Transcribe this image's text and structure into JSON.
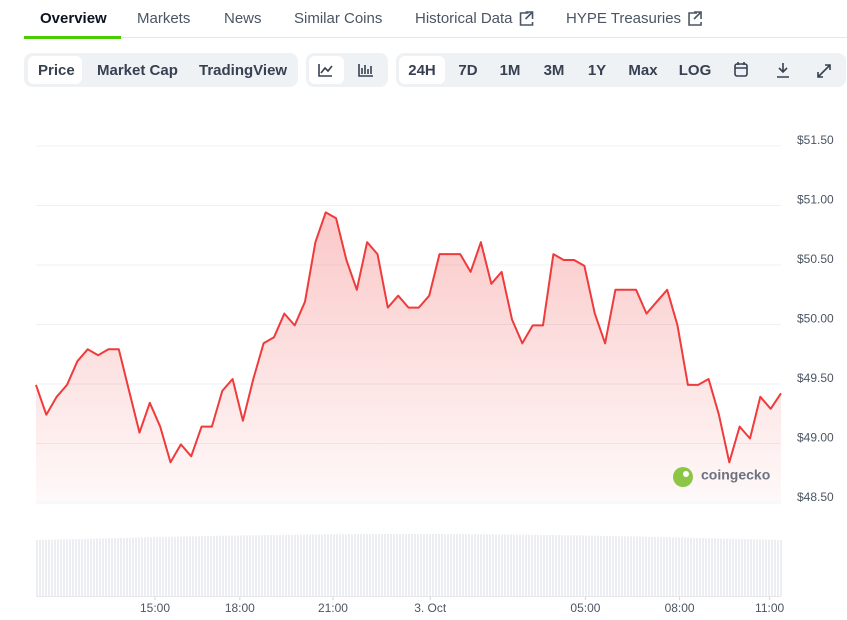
{
  "tabs": [
    "Overview",
    "Markets",
    "News",
    "Similar Coins",
    "Historical Data",
    "HYPE Treasuries"
  ],
  "toolbar": {
    "views": [
      "Price",
      "Market Cap",
      "TradingView"
    ],
    "ranges": [
      "24H",
      "7D",
      "1M",
      "3M",
      "1Y",
      "Max",
      "LOG"
    ]
  },
  "watermark": "coingecko",
  "chart_data": {
    "type": "line",
    "color": "#ef3b3b",
    "values": [
      49.45,
      49.2,
      49.35,
      49.45,
      49.65,
      49.75,
      49.7,
      49.75,
      49.75,
      49.4,
      49.05,
      49.3,
      49.1,
      48.8,
      48.95,
      48.85,
      49.1,
      49.1,
      49.4,
      49.5,
      49.15,
      49.5,
      49.8,
      49.85,
      50.05,
      49.95,
      50.15,
      50.65,
      50.9,
      50.85,
      50.5,
      50.25,
      50.65,
      50.55,
      50.1,
      50.2,
      50.1,
      50.1,
      50.2,
      50.55,
      50.55,
      50.55,
      50.4,
      50.65,
      50.3,
      50.4,
      50.0,
      49.8,
      49.95,
      49.95,
      50.55,
      50.5,
      50.5,
      50.45,
      50.05,
      49.8,
      50.25,
      50.25,
      50.25,
      50.05,
      50.15,
      50.25,
      49.95,
      49.45,
      49.45,
      49.5,
      49.2,
      48.8,
      49.1,
      49.0,
      49.35,
      49.25,
      49.38
    ],
    "xticks": [
      {
        "value": 11.5,
        "label": "15:00"
      },
      {
        "value": 19.7,
        "label": "18:00"
      },
      {
        "value": 28.7,
        "label": "21:00"
      },
      {
        "value": 38.1,
        "label": "3. Oct"
      },
      {
        "value": 53.1,
        "label": "05:00"
      },
      {
        "value": 62.2,
        "label": "08:00"
      },
      {
        "value": 70.9,
        "label": "11:00"
      }
    ],
    "ylim": [
      48.5,
      51.5
    ],
    "yticks": [
      {
        "value": 48.5,
        "label": "$48.50"
      },
      {
        "value": 49,
        "label": "$49.00"
      },
      {
        "value": 49.5,
        "label": "$49.50"
      },
      {
        "value": 50,
        "label": "$50.00"
      },
      {
        "value": 50.5,
        "label": "$50.50"
      },
      {
        "value": 51,
        "label": "$51.00"
      },
      {
        "value": 51.5,
        "label": "$51.50"
      }
    ],
    "grid": true
  }
}
